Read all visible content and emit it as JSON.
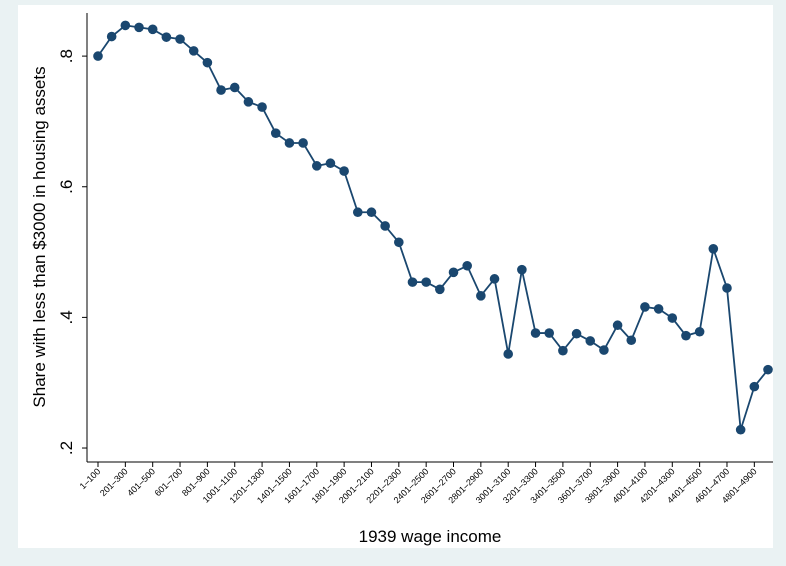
{
  "chart_data": {
    "type": "line",
    "xlabel": "1939 wage income",
    "ylabel": "Share with less than $3000 in housing assets",
    "categories": [
      "1–100",
      null,
      "201–300",
      null,
      "401–500",
      null,
      "601–700",
      null,
      "801–900",
      null,
      "1001–1100",
      null,
      "1201–1300",
      null,
      "1401–1500",
      null,
      "1601–1700",
      null,
      "1801–1900",
      null,
      "2001–2100",
      null,
      "2201–2300",
      null,
      "2401–2500",
      null,
      "2601–2700",
      null,
      "2801–2900",
      null,
      "3001–3100",
      null,
      "3201–3300",
      null,
      "3401–3500",
      null,
      "3601–3700",
      null,
      "3801–3900",
      null,
      "4001–4100",
      null,
      "4201–4300",
      null,
      "4401–4500",
      null,
      "4601–4700",
      null,
      "4801–4900",
      null
    ],
    "series": [
      {
        "name": "share",
        "color": "#1a476f",
        "values": [
          0.8,
          0.83,
          0.847,
          0.844,
          0.841,
          0.829,
          0.826,
          0.808,
          0.79,
          0.748,
          0.752,
          0.73,
          0.722,
          0.682,
          0.667,
          0.667,
          0.632,
          0.636,
          0.624,
          0.561,
          0.561,
          0.54,
          0.515,
          0.454,
          0.454,
          0.443,
          0.469,
          0.479,
          0.433,
          0.459,
          0.344,
          0.473,
          0.376,
          0.376,
          0.349,
          0.375,
          0.364,
          0.35,
          0.388,
          0.365,
          0.416,
          0.413,
          0.399,
          0.372,
          0.378,
          0.505,
          0.445,
          0.228,
          0.294,
          0.32
        ]
      }
    ],
    "ylim": [
      0.1786,
      0.866
    ],
    "yticks": [
      {
        "value": 0.2,
        "label": ".2"
      },
      {
        "value": 0.4,
        "label": ".4"
      },
      {
        "value": 0.6,
        "label": ".6"
      },
      {
        "value": 0.8,
        "label": ".8"
      }
    ],
    "grid": false
  }
}
